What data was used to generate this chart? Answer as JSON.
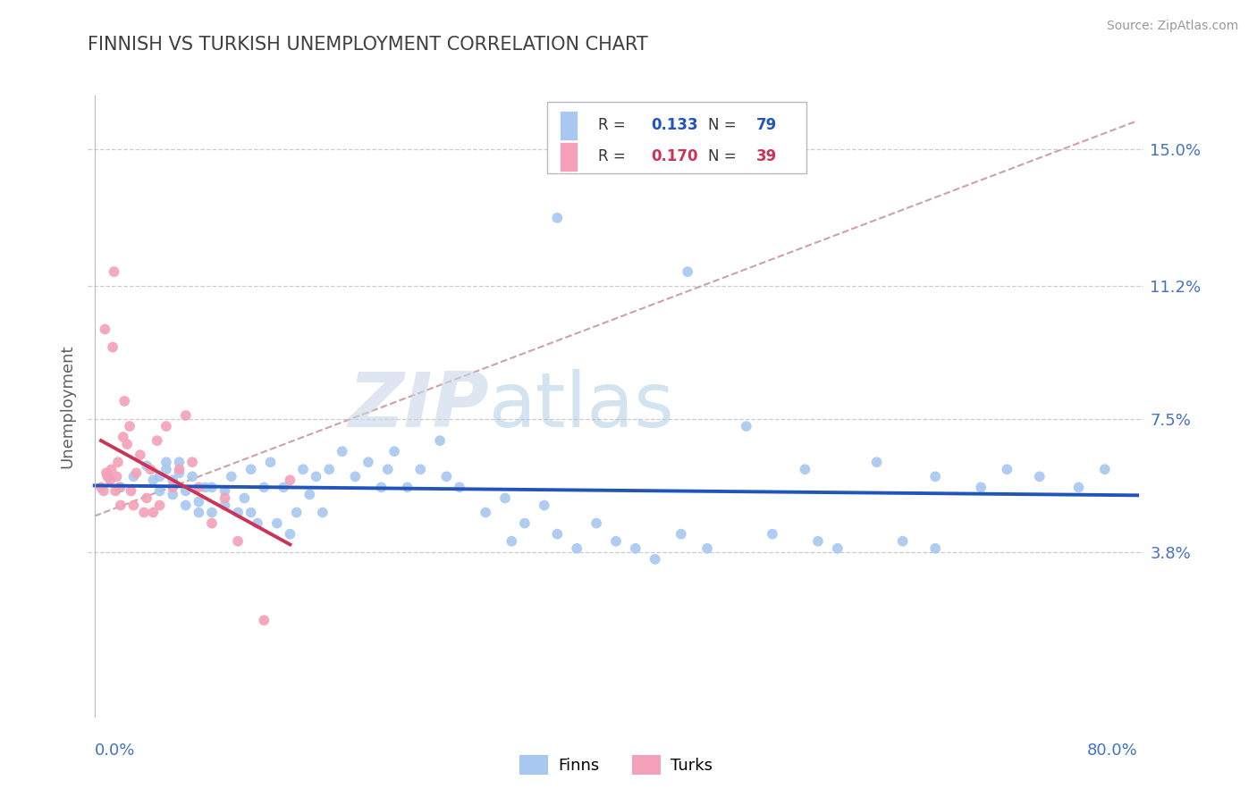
{
  "title": "FINNISH VS TURKISH UNEMPLOYMENT CORRELATION CHART",
  "source": "Source: ZipAtlas.com",
  "ylabel": "Unemployment",
  "y_ticks": [
    0.0,
    0.038,
    0.075,
    0.112,
    0.15
  ],
  "y_tick_labels": [
    "",
    "3.8%",
    "7.5%",
    "11.2%",
    "15.0%"
  ],
  "x_min": 0.0,
  "x_max": 0.8,
  "y_min": -0.008,
  "y_max": 0.165,
  "legend_label1": "Finns",
  "legend_label2": "Turks",
  "legend_r1_val": "0.133",
  "legend_n1_val": "79",
  "legend_r2_val": "0.170",
  "legend_n2_val": "39",
  "finns_color": "#a8c8f0",
  "turks_color": "#f4a0b8",
  "finns_line_color": "#2255bb",
  "turks_line_color": "#cc3355",
  "trendline_color": "#d0a0a8",
  "title_color": "#404040",
  "axis_color": "#4472c4",
  "watermark_color": "#ddeeff",
  "finns_x": [
    0.02,
    0.03,
    0.04,
    0.045,
    0.05,
    0.05,
    0.055,
    0.055,
    0.06,
    0.06,
    0.065,
    0.065,
    0.07,
    0.07,
    0.075,
    0.08,
    0.08,
    0.085,
    0.09,
    0.09,
    0.1,
    0.1,
    0.105,
    0.11,
    0.115,
    0.12,
    0.12,
    0.125,
    0.13,
    0.135,
    0.14,
    0.145,
    0.15,
    0.155,
    0.16,
    0.165,
    0.17,
    0.175,
    0.18,
    0.19,
    0.2,
    0.21,
    0.22,
    0.225,
    0.23,
    0.24,
    0.25,
    0.265,
    0.27,
    0.28,
    0.3,
    0.315,
    0.32,
    0.33,
    0.345,
    0.355,
    0.37,
    0.385,
    0.4,
    0.415,
    0.43,
    0.45,
    0.47,
    0.5,
    0.52,
    0.545,
    0.57,
    0.6,
    0.62,
    0.645,
    0.68,
    0.7,
    0.725,
    0.755,
    0.775,
    0.355,
    0.455,
    0.555,
    0.645
  ],
  "finns_y": [
    0.056,
    0.059,
    0.062,
    0.058,
    0.055,
    0.059,
    0.061,
    0.063,
    0.054,
    0.058,
    0.06,
    0.063,
    0.051,
    0.055,
    0.059,
    0.049,
    0.052,
    0.056,
    0.049,
    0.056,
    0.051,
    0.055,
    0.059,
    0.049,
    0.053,
    0.049,
    0.061,
    0.046,
    0.056,
    0.063,
    0.046,
    0.056,
    0.043,
    0.049,
    0.061,
    0.054,
    0.059,
    0.049,
    0.061,
    0.066,
    0.059,
    0.063,
    0.056,
    0.061,
    0.066,
    0.056,
    0.061,
    0.069,
    0.059,
    0.056,
    0.049,
    0.053,
    0.041,
    0.046,
    0.051,
    0.043,
    0.039,
    0.046,
    0.041,
    0.039,
    0.036,
    0.043,
    0.039,
    0.073,
    0.043,
    0.061,
    0.039,
    0.063,
    0.041,
    0.059,
    0.056,
    0.061,
    0.059,
    0.056,
    0.061,
    0.131,
    0.116,
    0.041,
    0.039
  ],
  "turks_x": [
    0.005,
    0.007,
    0.008,
    0.009,
    0.01,
    0.012,
    0.013,
    0.014,
    0.015,
    0.016,
    0.017,
    0.018,
    0.019,
    0.02,
    0.022,
    0.023,
    0.025,
    0.027,
    0.028,
    0.03,
    0.032,
    0.035,
    0.038,
    0.04,
    0.043,
    0.045,
    0.048,
    0.05,
    0.055,
    0.06,
    0.065,
    0.07,
    0.075,
    0.08,
    0.09,
    0.1,
    0.11,
    0.13,
    0.15
  ],
  "turks_y": [
    0.056,
    0.055,
    0.1,
    0.06,
    0.059,
    0.058,
    0.061,
    0.095,
    0.116,
    0.055,
    0.059,
    0.063,
    0.056,
    0.051,
    0.07,
    0.08,
    0.068,
    0.073,
    0.055,
    0.051,
    0.06,
    0.065,
    0.049,
    0.053,
    0.061,
    0.049,
    0.069,
    0.051,
    0.073,
    0.056,
    0.061,
    0.076,
    0.063,
    0.056,
    0.046,
    0.053,
    0.041,
    0.019,
    0.058
  ]
}
